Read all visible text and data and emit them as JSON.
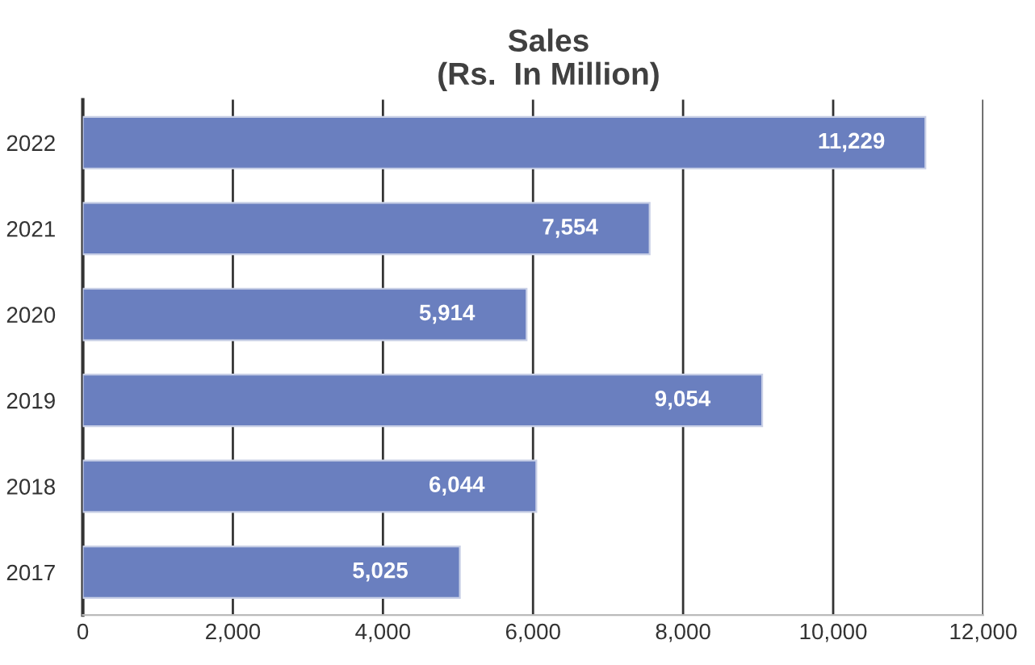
{
  "chart_data": {
    "type": "bar",
    "orientation": "horizontal",
    "title": "Sales",
    "subtitle": "(Rs.  In Million)",
    "categories": [
      "2022",
      "2021",
      "2020",
      "2019",
      "2018",
      "2017"
    ],
    "values": [
      11229,
      7554,
      5914,
      9054,
      6044,
      5025
    ],
    "value_labels": [
      "11,229",
      "7,554",
      "5,914",
      "9,054",
      "6,044",
      "5,025"
    ],
    "color": "#6a7fbf",
    "xlim": [
      0,
      12000
    ],
    "xticks": [
      0,
      {
        "value": 2000,
        "label": "2,000"
      },
      {
        "value": 4000,
        "label": "4,000"
      },
      {
        "value": 6000,
        "label": "6,000"
      },
      {
        "value": 8000,
        "label": "8,000"
      },
      {
        "value": 10000,
        "label": "10,000"
      },
      {
        "value": 12000,
        "label": "12,000"
      }
    ],
    "grid": "x",
    "legend": false
  }
}
